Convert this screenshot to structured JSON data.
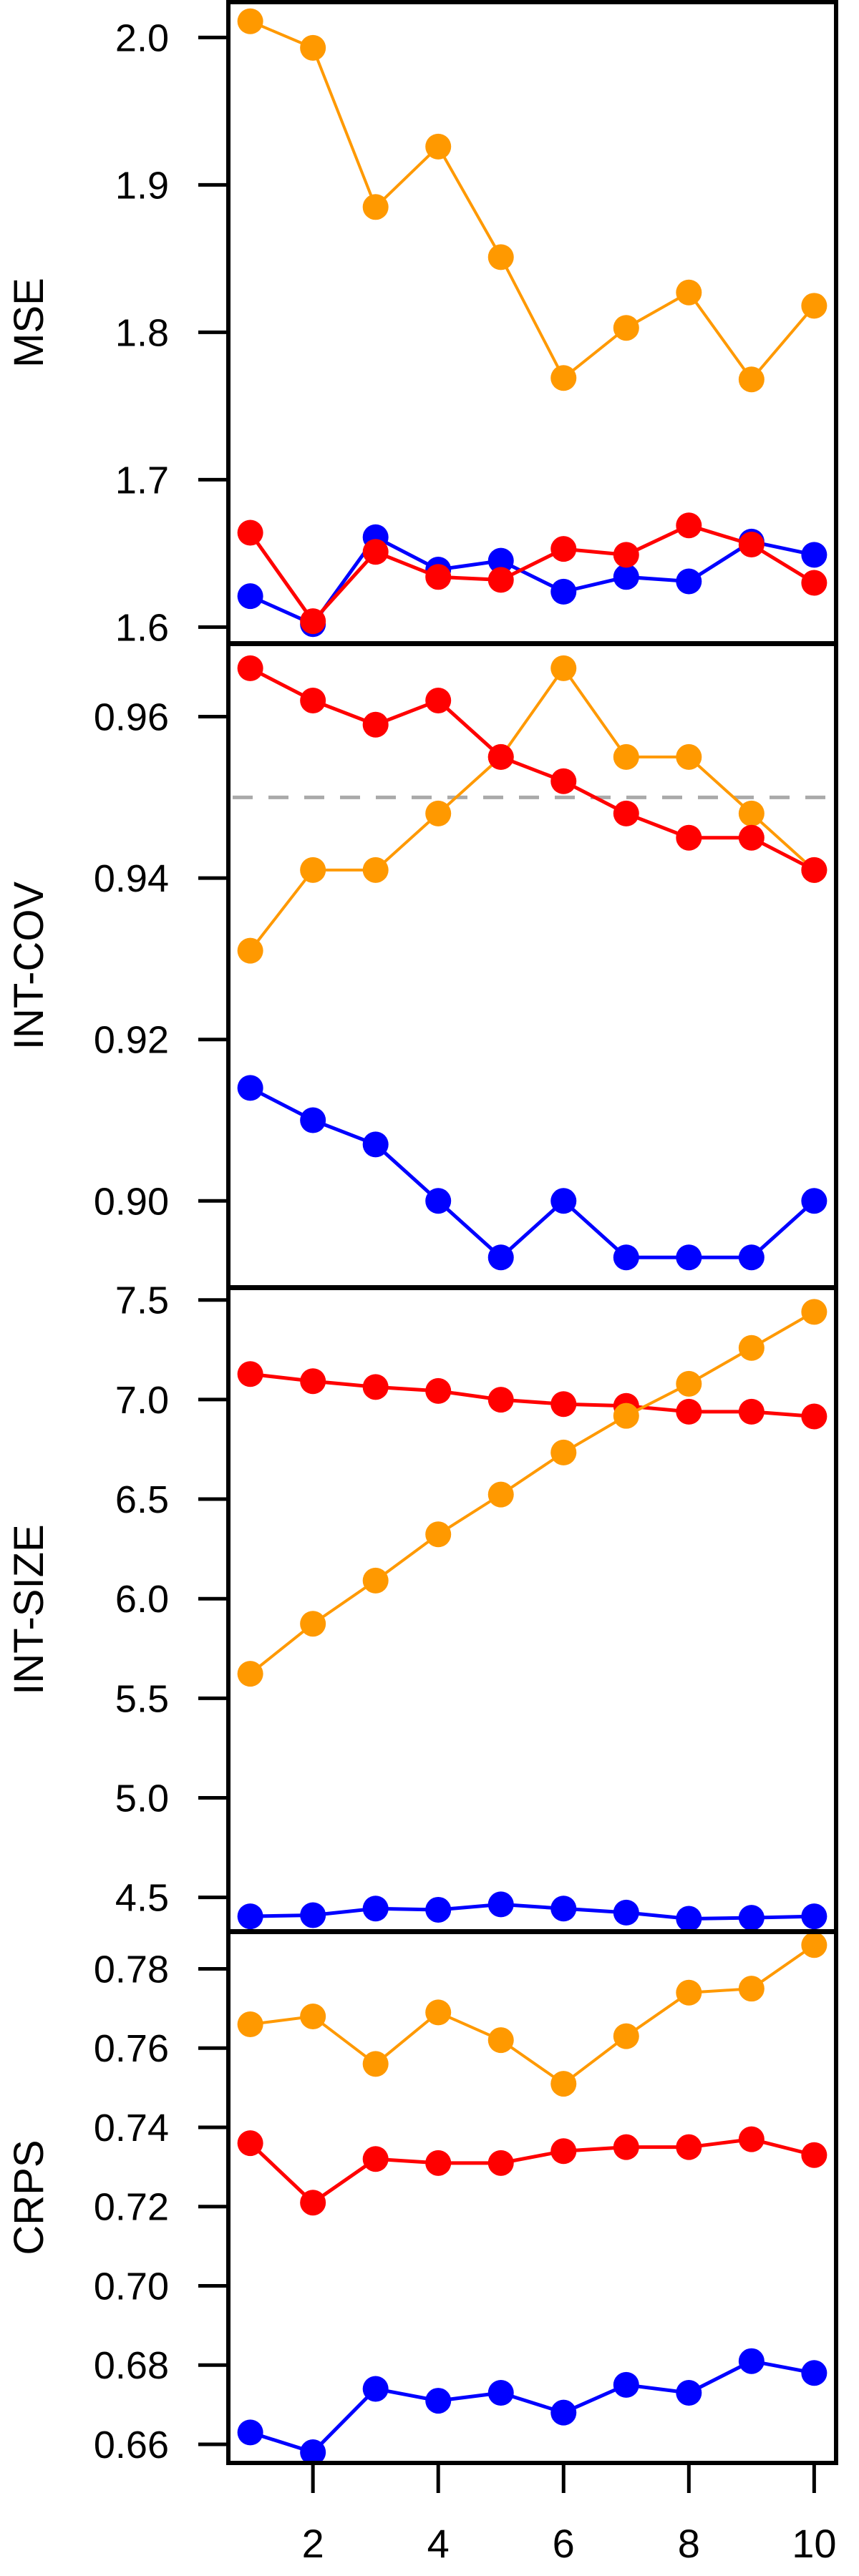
{
  "chart_data": {
    "type": "line",
    "x": [
      1,
      2,
      3,
      4,
      5,
      6,
      7,
      8,
      9,
      10
    ],
    "xticks": [
      "2",
      "4",
      "6",
      "8",
      "10"
    ],
    "xtick_values": [
      2,
      4,
      6,
      8,
      10
    ],
    "xlim": [
      0.65,
      10.35
    ],
    "colors": {
      "orange": "#FF9900",
      "red": "#FF0000",
      "blue": "#0000FF"
    },
    "panels": [
      {
        "ylabel": "MSE",
        "ylim": [
          1.589,
          2.024
        ],
        "yticks": [
          "1.6",
          "1.7",
          "1.8",
          "1.9",
          "2.0"
        ],
        "ytick_values": [
          1.6,
          1.7,
          1.8,
          1.9,
          2.0
        ],
        "series": [
          {
            "name": "orange",
            "color": "#FF9900",
            "values": [
              2.011,
              1.993,
              1.885,
              1.926,
              1.851,
              1.769,
              1.803,
              1.827,
              1.768,
              1.818
            ]
          },
          {
            "name": "blue",
            "color": "#0000FF",
            "values": [
              1.621,
              1.602,
              1.661,
              1.639,
              1.645,
              1.624,
              1.634,
              1.631,
              1.658,
              1.649
            ]
          },
          {
            "name": "red",
            "color": "#FF0000",
            "values": [
              1.664,
              1.604,
              1.651,
              1.634,
              1.632,
              1.653,
              1.649,
              1.669,
              1.656,
              1.63
            ]
          }
        ]
      },
      {
        "ylabel": "INT-COV",
        "ylim": [
          0.8893,
          0.969
        ],
        "yticks": [
          "0.90",
          "0.92",
          "0.94",
          "0.96"
        ],
        "ytick_values": [
          0.9,
          0.92,
          0.94,
          0.96
        ],
        "reference_line": 0.95,
        "series": [
          {
            "name": "orange",
            "color": "#FF9900",
            "values": [
              0.931,
              0.941,
              0.941,
              0.948,
              0.955,
              0.966,
              0.955,
              0.955,
              0.948,
              0.941
            ]
          },
          {
            "name": "red",
            "color": "#FF0000",
            "values": [
              0.966,
              0.962,
              0.959,
              0.962,
              0.955,
              0.952,
              0.948,
              0.945,
              0.945,
              0.941
            ]
          },
          {
            "name": "blue",
            "color": "#0000FF",
            "values": [
              0.914,
              0.91,
              0.907,
              0.9,
              0.893,
              0.9,
              0.893,
              0.893,
              0.893,
              0.9
            ]
          }
        ]
      },
      {
        "ylabel": "INT-SIZE",
        "ylim": [
          4.33,
          7.56
        ],
        "yticks": [
          "4.5",
          "5.0",
          "5.5",
          "6.0",
          "6.5",
          "7.0",
          "7.5"
        ],
        "ytick_values": [
          4.5,
          5.0,
          5.5,
          6.0,
          6.5,
          7.0,
          7.5
        ],
        "series": [
          {
            "name": "red",
            "color": "#FF0000",
            "values": [
              7.128,
              7.092,
              7.063,
              7.043,
              6.999,
              6.977,
              6.968,
              6.939,
              6.939,
              6.915
            ]
          },
          {
            "name": "orange",
            "color": "#FF9900",
            "values": [
              5.623,
              5.874,
              6.091,
              6.323,
              6.523,
              6.734,
              6.918,
              7.079,
              7.259,
              7.44
            ]
          },
          {
            "name": "blue",
            "color": "#0000FF",
            "values": [
              4.405,
              4.411,
              4.444,
              4.438,
              4.465,
              4.444,
              4.424,
              4.393,
              4.398,
              4.405
            ]
          }
        ]
      },
      {
        "ylabel": "CRPS",
        "ylim": [
          0.6553,
          0.7893
        ],
        "yticks": [
          "0.66",
          "0.68",
          "0.70",
          "0.72",
          "0.74",
          "0.76",
          "0.78"
        ],
        "ytick_values": [
          0.66,
          0.68,
          0.7,
          0.72,
          0.74,
          0.76,
          0.78
        ],
        "series": [
          {
            "name": "orange",
            "color": "#FF9900",
            "values": [
              0.766,
              0.768,
              0.756,
              0.769,
              0.762,
              0.751,
              0.763,
              0.774,
              0.775,
              0.786
            ]
          },
          {
            "name": "red",
            "color": "#FF0000",
            "values": [
              0.736,
              0.721,
              0.732,
              0.731,
              0.731,
              0.734,
              0.735,
              0.735,
              0.737,
              0.733
            ]
          },
          {
            "name": "blue",
            "color": "#0000FF",
            "values": [
              0.663,
              0.658,
              0.674,
              0.671,
              0.673,
              0.668,
              0.675,
              0.673,
              0.681,
              0.678
            ]
          }
        ]
      }
    ]
  }
}
